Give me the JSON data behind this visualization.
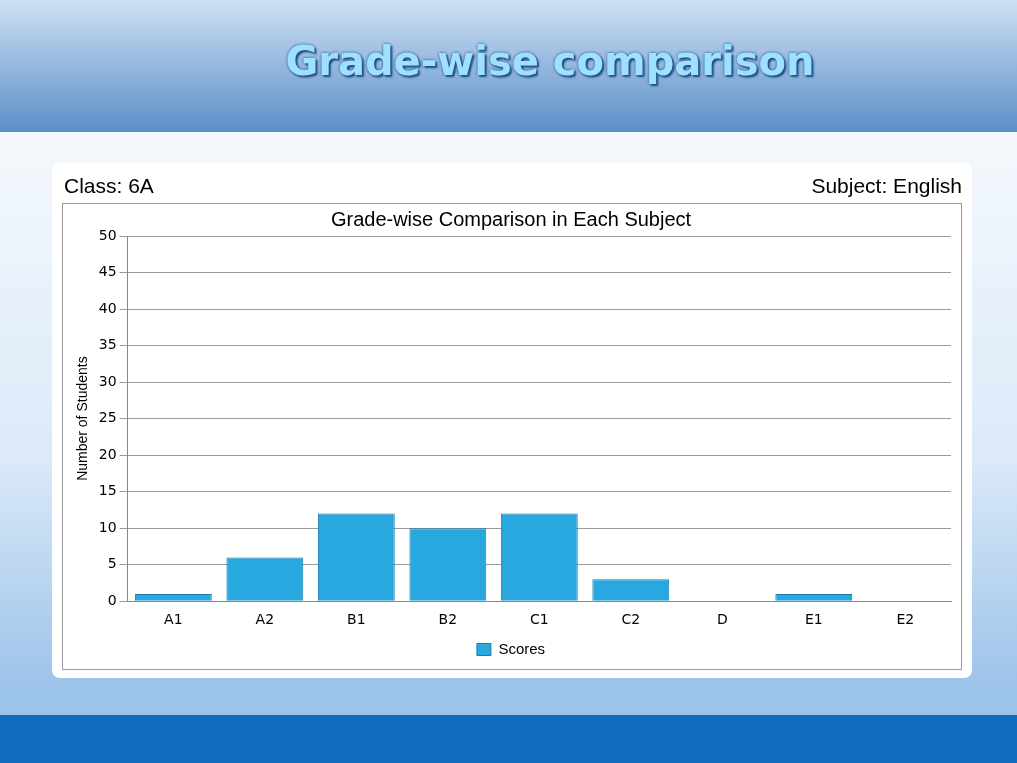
{
  "chart_data": {
    "type": "bar",
    "title": "Grade-wise comparison",
    "subtitle": "Grade-wise Comparison in Each Subject",
    "ylabel": "Number of Students",
    "annotations": [
      "Class: 6A",
      "Subject: English"
    ],
    "categories": [
      "A1",
      "A2",
      "B1",
      "B2",
      "C1",
      "C2",
      "D",
      "E1",
      "E2"
    ],
    "series": [
      {
        "name": "Scores",
        "color": "#29a8e0",
        "values": [
          1,
          6,
          12,
          10,
          12,
          3,
          0,
          1,
          0
        ]
      }
    ],
    "ylim": [
      0,
      50
    ],
    "yticks": [
      0,
      5,
      10,
      15,
      20,
      25,
      30,
      35,
      40,
      45,
      50
    ],
    "grid": "y",
    "legend": "bottom"
  }
}
